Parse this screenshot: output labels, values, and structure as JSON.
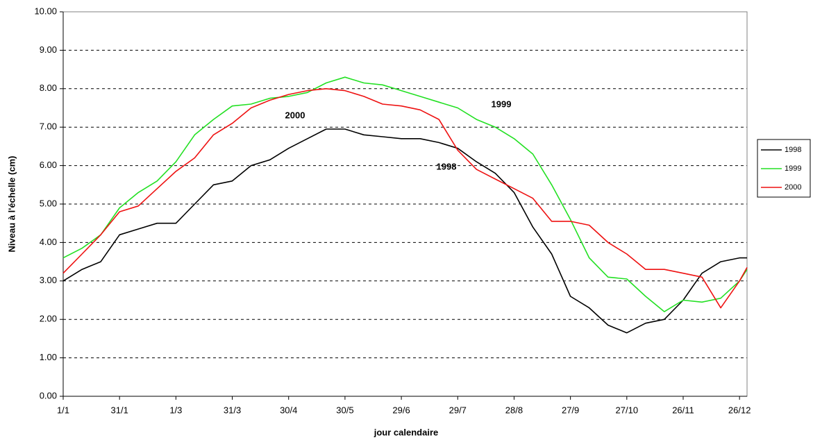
{
  "chart_data": {
    "type": "line",
    "x_label": "jour calendaire",
    "y_label": "Niveau à l'échelle (cm)",
    "x": [
      0,
      10,
      20,
      30,
      40,
      50,
      60,
      70,
      80,
      90,
      100,
      110,
      120,
      130,
      140,
      150,
      160,
      170,
      180,
      190,
      200,
      210,
      220,
      230,
      240,
      250,
      260,
      270,
      280,
      290,
      300,
      310,
      320,
      330,
      340,
      350,
      360,
      364
    ],
    "series": [
      {
        "name": "1998",
        "color": "#000000",
        "values": [
          3.0,
          3.3,
          3.5,
          4.2,
          4.35,
          4.5,
          4.5,
          5.0,
          5.5,
          5.6,
          6.0,
          6.15,
          6.45,
          6.7,
          6.95,
          6.95,
          6.8,
          6.75,
          6.7,
          6.7,
          6.6,
          6.45,
          6.1,
          5.8,
          5.3,
          4.4,
          3.7,
          2.6,
          2.3,
          1.85,
          1.65,
          1.9,
          2.0,
          2.5,
          3.2,
          3.5,
          3.6,
          3.6
        ]
      },
      {
        "name": "1999",
        "color": "#22e022",
        "values": [
          3.6,
          3.85,
          4.2,
          4.9,
          5.3,
          5.6,
          6.1,
          6.8,
          7.2,
          7.55,
          7.6,
          7.75,
          7.8,
          7.9,
          8.15,
          8.3,
          8.15,
          8.1,
          7.95,
          7.8,
          7.65,
          7.5,
          7.2,
          7.0,
          6.7,
          6.3,
          5.5,
          4.6,
          3.6,
          3.1,
          3.05,
          2.6,
          2.2,
          2.5,
          2.45,
          2.55,
          3.0,
          3.3
        ]
      },
      {
        "name": "2000",
        "color": "#ee1111",
        "values": [
          3.2,
          3.7,
          4.2,
          4.8,
          4.95,
          5.4,
          5.85,
          6.2,
          6.8,
          7.1,
          7.5,
          7.7,
          7.85,
          7.95,
          8.0,
          7.95,
          7.8,
          7.6,
          7.55,
          7.45,
          7.2,
          6.4,
          5.9,
          5.65,
          5.4,
          5.15,
          4.55,
          4.55,
          4.45,
          4.0,
          3.7,
          3.3,
          3.3,
          3.2,
          3.1,
          2.3,
          3.0,
          3.35
        ]
      }
    ],
    "annotations": [
      "1999",
      "2000",
      "1998"
    ],
    "xlim": [
      0,
      364
    ],
    "ylim": [
      0,
      10
    ],
    "xticks": [
      {
        "value": 0,
        "label": "1/1"
      },
      {
        "value": 30,
        "label": "31/1"
      },
      {
        "value": 60,
        "label": "1/3"
      },
      {
        "value": 90,
        "label": "31/3"
      },
      {
        "value": 120,
        "label": "30/4"
      },
      {
        "value": 150,
        "label": "30/5"
      },
      {
        "value": 180,
        "label": "29/6"
      },
      {
        "value": 210,
        "label": "29/7"
      },
      {
        "value": 240,
        "label": "28/8"
      },
      {
        "value": 270,
        "label": "27/9"
      },
      {
        "value": 300,
        "label": "27/10"
      },
      {
        "value": 330,
        "label": "26/11"
      },
      {
        "value": 360,
        "label": "26/12"
      }
    ],
    "yticks": [
      {
        "value": 0,
        "label": "0.00"
      },
      {
        "value": 1,
        "label": "1.00"
      },
      {
        "value": 2,
        "label": "2.00"
      },
      {
        "value": 3,
        "label": "3.00"
      },
      {
        "value": 4,
        "label": "4.00"
      },
      {
        "value": 5,
        "label": "5.00"
      },
      {
        "value": 6,
        "label": "6.00"
      },
      {
        "value": 7,
        "label": "7.00"
      },
      {
        "value": 8,
        "label": "8.00"
      },
      {
        "value": 9,
        "label": "9.00"
      },
      {
        "value": 10,
        "label": "10.00"
      }
    ],
    "grid": true,
    "legend": "right"
  }
}
